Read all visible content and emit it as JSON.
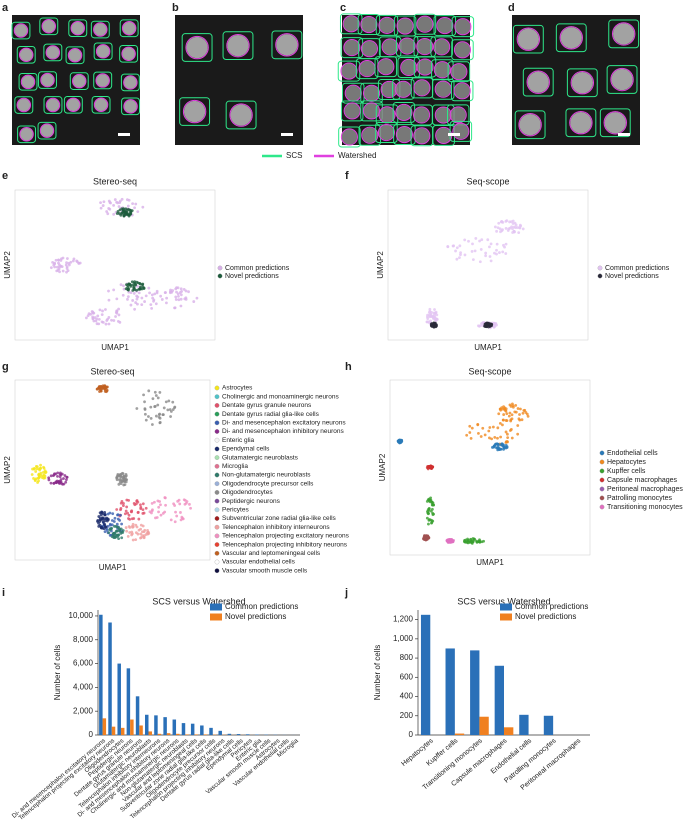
{
  "panel_labels": [
    "a",
    "b",
    "c",
    "d",
    "e",
    "f",
    "g",
    "h",
    "i",
    "j"
  ],
  "segmentation_legend": [
    {
      "name": "SCS",
      "color": "#2ee88a"
    },
    {
      "name": "Watershed",
      "color": "#e040e0"
    }
  ],
  "umap_panels": [
    {
      "title": "Stereo-seq",
      "xlabel": "UMAP1",
      "ylabel": "UMAP2",
      "legend": [
        {
          "name": "Common predictions",
          "color": "#d8b0e8"
        },
        {
          "name": "Novel predictions",
          "color": "#1d5c3c"
        }
      ]
    },
    {
      "title": "Seq-scope",
      "xlabel": "UMAP1",
      "ylabel": "UMAP2",
      "legend": [
        {
          "name": "Common predictions",
          "color": "#e2c4f2"
        },
        {
          "name": "Novel predictions",
          "color": "#2a2a3a"
        }
      ]
    },
    {
      "title": "Stereo-seq",
      "xlabel": "UMAP1",
      "ylabel": "UMAP2",
      "legend": [
        {
          "name": "Astrocytes",
          "color": "#f5e61a"
        },
        {
          "name": "Cholinergic and monoaminergic neurons",
          "color": "#4fc3c8"
        },
        {
          "name": "Dentate gyrus granule neurons",
          "color": "#e0506a"
        },
        {
          "name": "Dentate gyrus radial glia-like cells",
          "color": "#2a9e5a"
        },
        {
          "name": "Di- and mesencephalon excitatory neurons",
          "color": "#3a5fb0"
        },
        {
          "name": "Di- and mesencephalon inhibitory neurons",
          "color": "#8a2a8a"
        },
        {
          "name": "Enteric glia",
          "color": "#f4f4f4"
        },
        {
          "name": "Ependymal cells",
          "color": "#1a2a6a"
        },
        {
          "name": "Glutamatergic neuroblasts",
          "color": "#a8e0b0"
        },
        {
          "name": "Microglia",
          "color": "#e07090"
        },
        {
          "name": "Non-glutamatergic neuroblasts",
          "color": "#2e7a6a"
        },
        {
          "name": "Oligodendrocyte precursor cells",
          "color": "#9ab0d8"
        },
        {
          "name": "Oligodendrocytes",
          "color": "#8a8a8a"
        },
        {
          "name": "Peptidergic neurons",
          "color": "#7a4a9a"
        },
        {
          "name": "Pericytes",
          "color": "#b0d8e8"
        },
        {
          "name": "Subventricular zone radial glia-like cells",
          "color": "#a01a1a"
        },
        {
          "name": "Telencephalon inhibitory interneurons",
          "color": "#f0a0a0"
        },
        {
          "name": "Telencephalon projecting excitatory neurons",
          "color": "#f090c0"
        },
        {
          "name": "Telencephalon projecting inhibitory neurons",
          "color": "#e84030"
        },
        {
          "name": "Vascular and leptomeningeal cells",
          "color": "#c06020"
        },
        {
          "name": "Vascular endothelial cells",
          "color": "#ffffff"
        },
        {
          "name": "Vascular smooth muscle cells",
          "color": "#101040"
        }
      ]
    },
    {
      "title": "Seq-scope",
      "xlabel": "UMAP1",
      "ylabel": "UMAP2",
      "legend": [
        {
          "name": "Endothelial cells",
          "color": "#2a7ab8"
        },
        {
          "name": "Hepatocytes",
          "color": "#f08a20"
        },
        {
          "name": "Kupffer cells",
          "color": "#3aa030"
        },
        {
          "name": "Capsule macrophages",
          "color": "#d03030"
        },
        {
          "name": "Peritoneal macrophages",
          "color": "#9a60b0"
        },
        {
          "name": "Patrolling monocytes",
          "color": "#a05050"
        },
        {
          "name": "Transitioning monocytes",
          "color": "#e070c0"
        }
      ]
    }
  ],
  "chart_data": [
    {
      "type": "bar",
      "title": "SCS versus Watershed",
      "ylabel": "Number of cells",
      "categories": [
        "Di- and mesencephalon excitatory neurons",
        "Telencephalon projecting excitatory neurons",
        "Oligodendrocytes",
        "Peptidergic neurons",
        "Dentate gyrus granule neurons",
        "Glutamatergic neuroblasts",
        "Telencephalon inhibitory interneurons",
        "Di- and mesencephalon inhibitory neurons",
        "Cholinergic and monoaminergic neurons",
        "Non-glutamatergic neuroblasts",
        "Vascular and leptomeningeal cells",
        "Subventricular zone radial glia-like cells",
        "Oligodendrocyte precursor cells",
        "Telencephalon projecting inhibitory neurons",
        "Dentate gyrus radial glia-like cells",
        "Ependymal cells",
        "Pericytes",
        "Enteric glia",
        "Vascular smooth muscle cells",
        "Astrocytes",
        "Vascular endothelial cells",
        "Microglia"
      ],
      "series": [
        {
          "name": "Common predictions",
          "color": "#2a70b8",
          "values": [
            10100,
            9450,
            6000,
            5600,
            3250,
            1700,
            1650,
            1500,
            1300,
            1000,
            950,
            800,
            600,
            350,
            100,
            80,
            60,
            40,
            30,
            20,
            10,
            5
          ]
        },
        {
          "name": "Novel predictions",
          "color": "#f08020",
          "values": [
            1400,
            700,
            600,
            1300,
            800,
            300,
            100,
            150,
            100,
            50,
            50,
            50,
            30,
            20,
            10,
            10,
            5,
            0,
            0,
            0,
            0,
            0
          ]
        }
      ],
      "ylim": [
        0,
        10500
      ],
      "yticks": [
        0,
        {
          "value": 2000,
          "label": "2,000"
        },
        {
          "value": 4000,
          "label": "4,000"
        },
        {
          "value": 6000,
          "label": "6,000"
        },
        {
          "value": 8000,
          "label": "8,000"
        },
        {
          "value": 10000,
          "label": "10,000"
        }
      ]
    },
    {
      "type": "bar",
      "title": "SCS versus Watershed",
      "ylabel": "Number of cells",
      "categories": [
        "Hepatocytes",
        "Kupffer cells",
        "Transitioning monocytes",
        "Capsule macrophages",
        "Endothelial cells",
        "Patrolling monocytes",
        "Peritoneal macrophages"
      ],
      "series": [
        {
          "name": "Common predictions",
          "color": "#2a70b8",
          "values": [
            1250,
            900,
            880,
            720,
            210,
            200,
            0
          ]
        },
        {
          "name": "Novel predictions",
          "color": "#f08020",
          "values": [
            0,
            15,
            190,
            80,
            0,
            0,
            0
          ]
        }
      ],
      "ylim": [
        0,
        1300
      ],
      "yticks": [
        0,
        200,
        400,
        600,
        800,
        {
          "value": 1000,
          "label": "1,000"
        },
        {
          "value": 1200,
          "label": "1,200"
        }
      ]
    }
  ]
}
